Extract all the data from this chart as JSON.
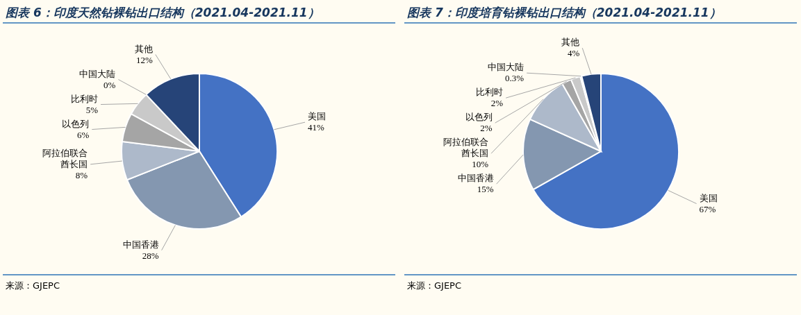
{
  "chart_data": [
    {
      "type": "pie",
      "title": "图表 6：印度天然钻裸钻出口结构（2021.04-2021.11）",
      "categories": [
        "美国",
        "中国香港",
        "阿拉伯联合酋长国",
        "以色列",
        "比利时",
        "中国大陆",
        "其他"
      ],
      "values": [
        41,
        28,
        8,
        6,
        5,
        0,
        12
      ],
      "value_labels": [
        "41%",
        "28%",
        "8%",
        "6%",
        "5%",
        "0%",
        "12%"
      ],
      "colors": [
        "#4472c4",
        "#8497b0",
        "#adb9ca",
        "#a5a5a5",
        "#c9c9c9",
        "#7f7f7f",
        "#264478"
      ],
      "annotations": [
        "来源：GJEPC"
      ]
    },
    {
      "type": "pie",
      "title": "图表 7：印度培育钻裸钻出口结构（2021.04-2021.11）",
      "categories": [
        "美国",
        "中国香港",
        "阿拉伯联合酋长国",
        "以色列",
        "比利时",
        "中国大陆",
        "其他"
      ],
      "values": [
        67,
        15,
        10,
        2,
        2,
        0.3,
        4
      ],
      "value_labels": [
        "67%",
        "15%",
        "10%",
        "2%",
        "2%",
        "0.3%",
        "4%"
      ],
      "colors": [
        "#4472c4",
        "#8497b0",
        "#adb9ca",
        "#a5a5a5",
        "#c9c9c9",
        "#7f7f7f",
        "#264478"
      ],
      "annotations": [
        "来源：GJEPC"
      ]
    }
  ]
}
